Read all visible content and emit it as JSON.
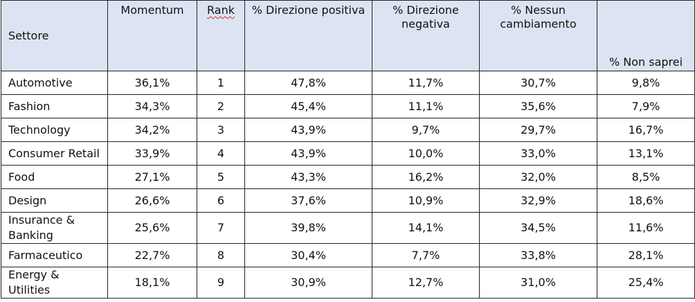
{
  "headers": {
    "settore": "Settore",
    "momentum": "Momentum",
    "rank": "Rank",
    "positiva": "% Direzione positiva",
    "negativa": "% Direzione negativa",
    "nessun": "% Nessun cambiamento",
    "non_saprei": "% Non saprei"
  },
  "rows": [
    {
      "settore": "Automotive",
      "momentum": "36,1%",
      "rank": "1",
      "positiva": "47,8%",
      "negativa": "11,7%",
      "nessun": "30,7%",
      "non_saprei": "9,8%"
    },
    {
      "settore": "Fashion",
      "momentum": "34,3%",
      "rank": "2",
      "positiva": "45,4%",
      "negativa": "11,1%",
      "nessun": "35,6%",
      "non_saprei": "7,9%"
    },
    {
      "settore": "Technology",
      "momentum": "34,2%",
      "rank": "3",
      "positiva": "43,9%",
      "negativa": "9,7%",
      "nessun": "29,7%",
      "non_saprei": "16,7%"
    },
    {
      "settore": "Consumer Retail",
      "momentum": "33,9%",
      "rank": "4",
      "positiva": "43,9%",
      "negativa": "10,0%",
      "nessun": "33,0%",
      "non_saprei": "13,1%"
    },
    {
      "settore": "Food",
      "momentum": "27,1%",
      "rank": "5",
      "positiva": "43,3%",
      "negativa": "16,2%",
      "nessun": "32,0%",
      "non_saprei": "8,5%"
    },
    {
      "settore": "Design",
      "momentum": "26,6%",
      "rank": "6",
      "positiva": "37,6%",
      "negativa": "10,9%",
      "nessun": "32,9%",
      "non_saprei": "18,6%"
    },
    {
      "settore": "Insurance & Banking",
      "momentum": "25,6%",
      "rank": "7",
      "positiva": "39,8%",
      "negativa": "14,1%",
      "nessun": "34,5%",
      "non_saprei": "11,6%"
    },
    {
      "settore": "Farmaceutico",
      "momentum": "22,7%",
      "rank": "8",
      "positiva": "30,4%",
      "negativa": "7,7%",
      "nessun": "33,8%",
      "non_saprei": "28,1%"
    },
    {
      "settore": "Energy & Utilities",
      "momentum": "18,1%",
      "rank": "9",
      "positiva": "30,9%",
      "negativa": "12,7%",
      "nessun": "31,0%",
      "non_saprei": "25,4%"
    }
  ],
  "colors": {
    "header_background": "#dce4f4",
    "border": "#222222",
    "spellcheck_underline": "#d03030"
  }
}
